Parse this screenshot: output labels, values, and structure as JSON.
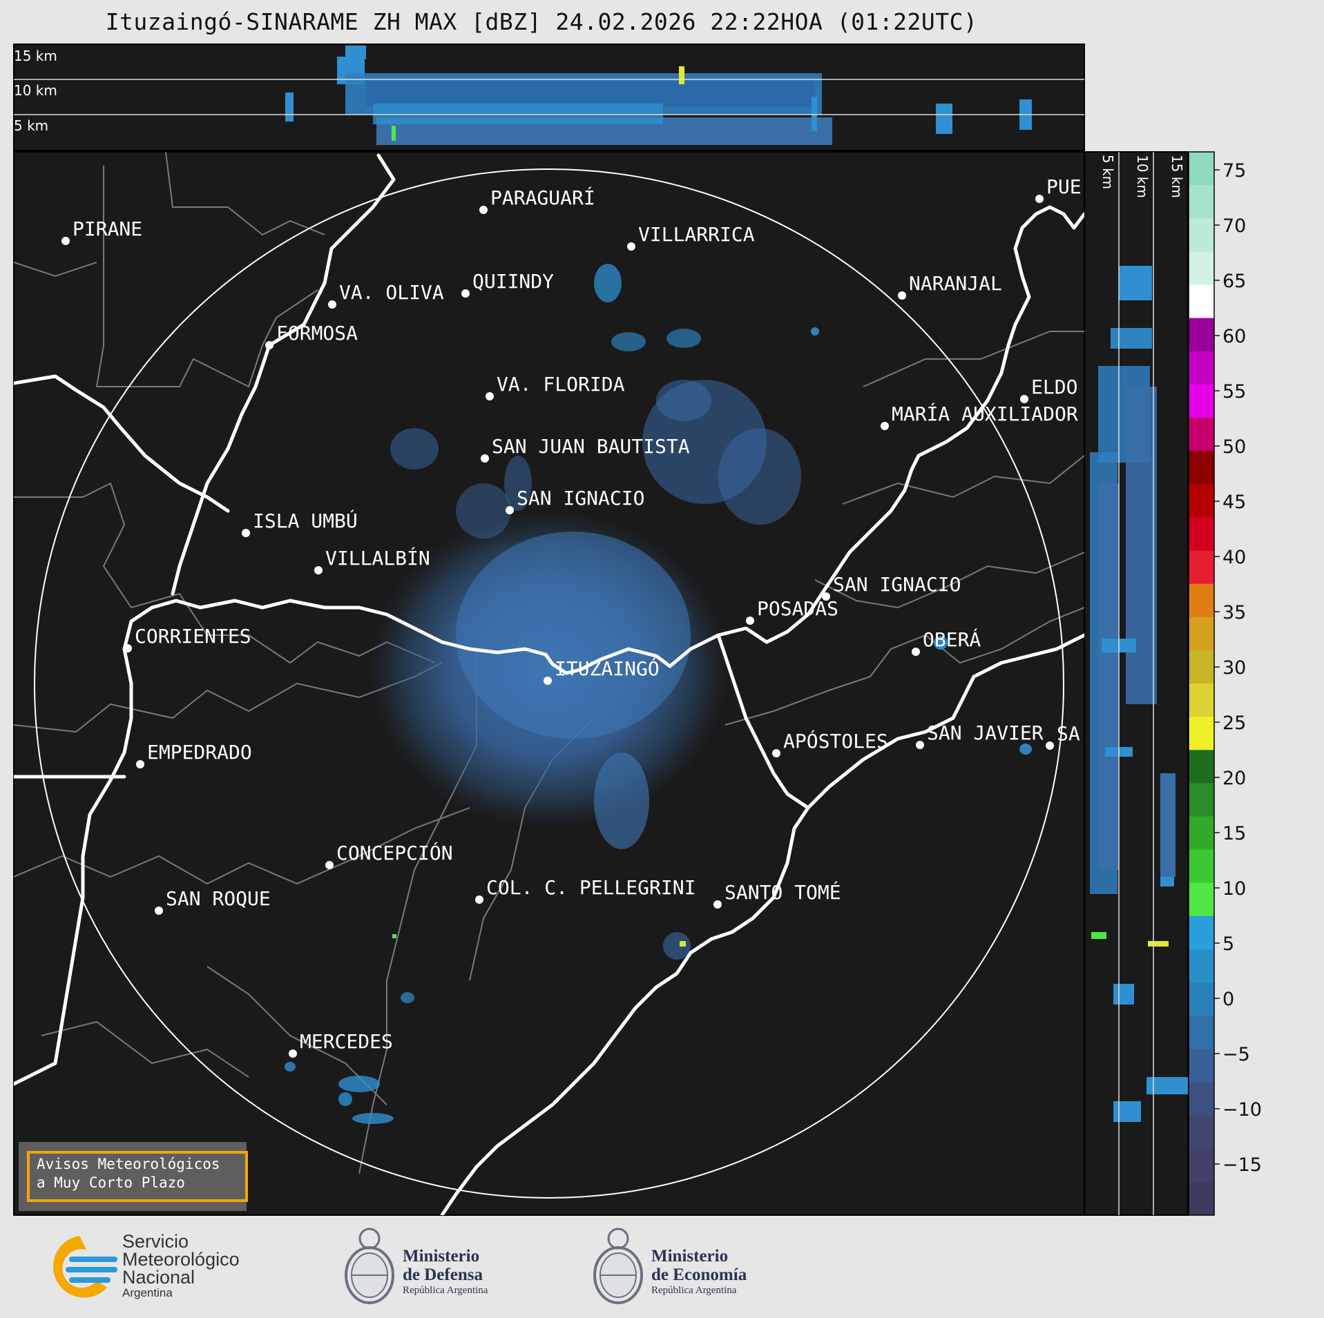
{
  "title": "Ituzaingó-SINARAME ZH MAX [dBZ] 24.02.2026 22:22HOA (01:22UTC)",
  "top_profile_labels": [
    "15 km",
    "10 km",
    "5 km"
  ],
  "side_profile_labels": [
    "5 km",
    "10 km",
    "15 km"
  ],
  "colorbar": {
    "ticks": [
      "75",
      "70",
      "65",
      "60",
      "55",
      "50",
      "45",
      "40",
      "35",
      "30",
      "25",
      "20",
      "15",
      "10",
      "5",
      "0",
      "−5",
      "−10",
      "−15"
    ],
    "colors": [
      "#8fdbbd",
      "#a6e3c9",
      "#bdebd6",
      "#d4f2e3",
      "#ffffff",
      "#9b009b",
      "#c400c4",
      "#e600e6",
      "#c8006e",
      "#8c0000",
      "#b40000",
      "#d2001e",
      "#e61e32",
      "#e07d14",
      "#d4a020",
      "#c8b428",
      "#dcd232",
      "#f0f028",
      "#1e6e1e",
      "#288c28",
      "#32aa28",
      "#3cc832",
      "#50e646",
      "#28a0dc",
      "#2890c8",
      "#2a80b8",
      "#3070a8",
      "#3a6098",
      "#3e5080",
      "#404870",
      "#404068",
      "#3c3c60"
    ]
  },
  "map": {
    "cities": [
      {
        "name": "PIRANE"
      },
      {
        "name": "PARAGUARÍ"
      },
      {
        "name": "VILLARRICA"
      },
      {
        "name": "VA. OLIVA"
      },
      {
        "name": "QUIINDY"
      },
      {
        "name": "FORMOSA"
      },
      {
        "name": "NARANJAL"
      },
      {
        "name": "PUE"
      },
      {
        "name": "VA. FLORIDA"
      },
      {
        "name": "ELDO"
      },
      {
        "name": "MARÍA AUXILIADOR"
      },
      {
        "name": "SAN JUAN BAUTISTA"
      },
      {
        "name": "SAN IGNACIO"
      },
      {
        "name": "ISLA UMBÚ"
      },
      {
        "name": "VILLALBÍN"
      },
      {
        "name": "SAN IGNACIO"
      },
      {
        "name": "POSADAS"
      },
      {
        "name": "CORRIENTES"
      },
      {
        "name": "ITUZAINGÓ"
      },
      {
        "name": "OBERÁ"
      },
      {
        "name": "APÓSTOLES"
      },
      {
        "name": "SAN JAVIER"
      },
      {
        "name": "SA"
      },
      {
        "name": "EMPEDRADO"
      },
      {
        "name": "CONCEPCIÓN"
      },
      {
        "name": "COL. C. PELLEGRINI"
      },
      {
        "name": "SANTO TOMÉ"
      },
      {
        "name": "SAN ROQUE"
      },
      {
        "name": "MERCEDES"
      }
    ]
  },
  "warning_box": {
    "line1": "Avisos Meteorológicos",
    "line2": "a Muy Corto Plazo"
  },
  "logos": {
    "smn": {
      "line1": "Servicio",
      "line2": "Meteorológico",
      "line3": "Nacional",
      "line4": "Argentina"
    },
    "defensa": {
      "line1": "Ministerio",
      "line2": "de Defensa",
      "line3": "República Argentina"
    },
    "economia": {
      "line1": "Ministerio",
      "line2": "de Economía",
      "line3": "República Argentina"
    }
  }
}
